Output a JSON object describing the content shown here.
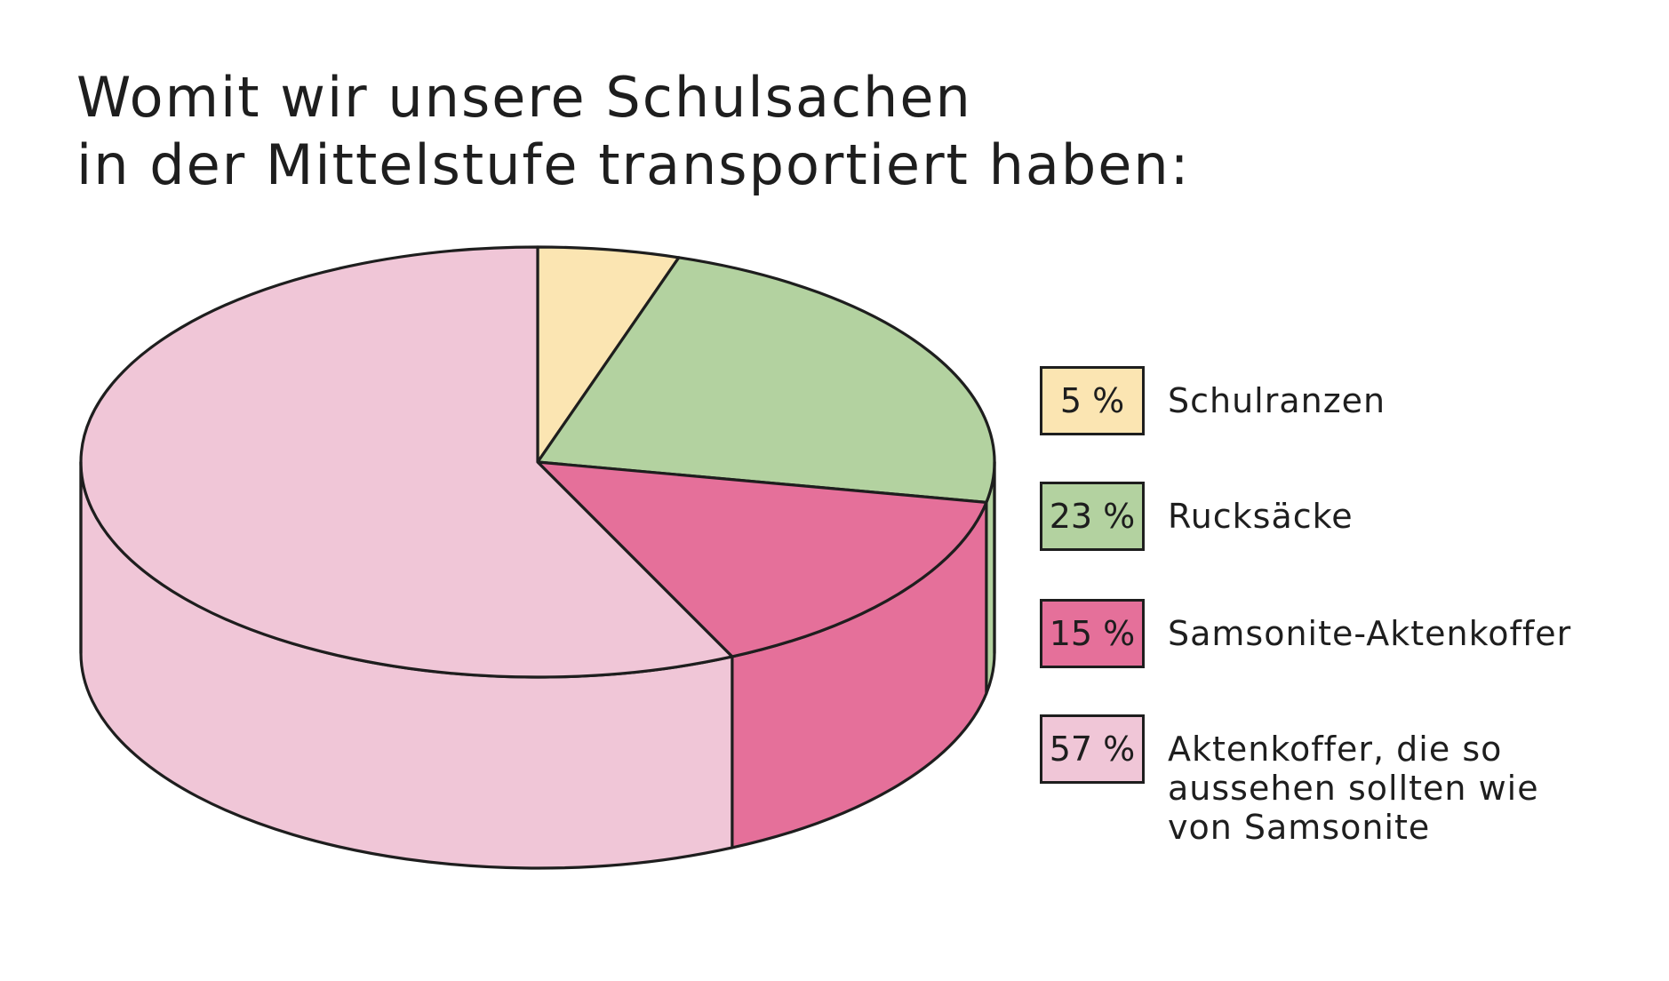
{
  "chart_data": {
    "type": "pie",
    "title_lines": [
      "Womit wir unsere Schulsachen",
      "in der Mittelstufe transportiert haben:"
    ],
    "slices": [
      {
        "label": "Schulranzen",
        "value": 5,
        "value_label": "5 %",
        "color": "#fbe5b2"
      },
      {
        "label": "Rucksäcke",
        "value": 23,
        "value_label": "23 %",
        "color": "#b3d2a0"
      },
      {
        "label": "Samsonite-Aktenkoffer",
        "value": 15,
        "value_label": "15 %",
        "color": "#e5709a"
      },
      {
        "label": "Aktenkoffer, die so\naussehen sollten wie\nvon Samsonite",
        "value": 57,
        "value_label": "57 %",
        "color": "#f0c6d7"
      }
    ],
    "style": "3d",
    "legend_position": "right"
  }
}
